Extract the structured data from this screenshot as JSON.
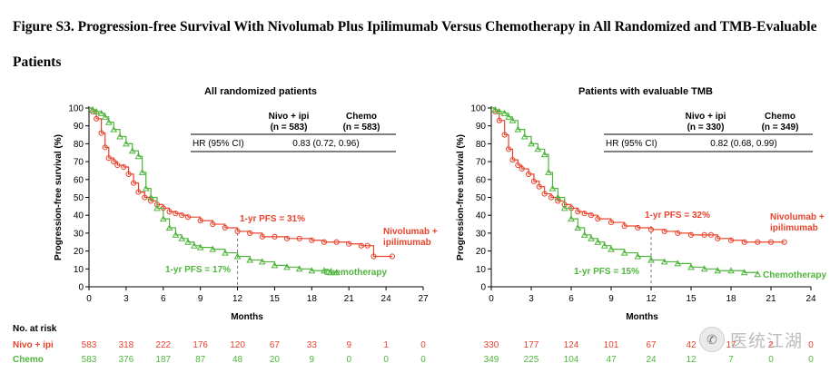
{
  "figure_title": "Figure S3. Progression-free Survival With Nivolumab Plus Ipilimumab Versus Chemotherapy in All Randomized and TMB-Evaluable Patients",
  "colors": {
    "nivo": "#e8432c",
    "chemo": "#4fb53c",
    "text": "#000000"
  },
  "watermark": {
    "icon": "wechat-icon",
    "text": "医统江湖"
  },
  "risk_table": {
    "header": "No. at risk",
    "row_labels": [
      "Nivo + ipi",
      "Chemo"
    ]
  },
  "chart_data": [
    {
      "type": "line",
      "title": "All randomized patients",
      "xlabel": "Months",
      "ylabel": "Progression-free survival (%)",
      "xlim": [
        0,
        27
      ],
      "ylim": [
        0,
        100
      ],
      "xticks": [
        0,
        3,
        6,
        9,
        12,
        15,
        18,
        21,
        24,
        27
      ],
      "yticks": [
        0,
        10,
        20,
        30,
        40,
        50,
        60,
        70,
        80,
        90,
        100
      ],
      "landmark_x": 12,
      "hr_table": {
        "col1": "Nivo + ipi",
        "col1_n": "(n = 583)",
        "col2": "Chemo",
        "col2_n": "(n = 583)",
        "row_label": "HR (95% CI)",
        "value": "0.83 (0.72, 0.96)"
      },
      "series": [
        {
          "name": "Nivolumab + ipilimumab",
          "label_line1": "Nivolumab +",
          "label_line2": "ipilimumab",
          "marker": "circle",
          "annotation": "1-yr PFS = 31%",
          "x": [
            0,
            0.3,
            0.6,
            1.0,
            1.3,
            1.6,
            2.0,
            2.3,
            2.8,
            3.2,
            3.6,
            4.0,
            4.5,
            5.0,
            5.5,
            6.0,
            6.5,
            7.0,
            7.5,
            8.0,
            9.0,
            10.0,
            11.0,
            12.0,
            13.0,
            14.0,
            15.0,
            16.0,
            17.0,
            18.0,
            19.0,
            20.0,
            21.0,
            22.0,
            22.5,
            23.0,
            24.5
          ],
          "y": [
            100,
            98,
            94,
            86,
            78,
            72,
            70,
            68,
            67,
            63,
            58,
            53,
            50,
            48,
            46,
            44,
            42,
            41,
            40,
            39,
            37,
            35,
            33,
            31,
            30,
            28,
            28,
            27,
            27,
            26,
            25,
            25,
            24,
            23,
            23,
            17,
            17
          ]
        },
        {
          "name": "Chemotherapy",
          "marker": "triangle",
          "annotation": "1-yr PFS = 17%",
          "x": [
            0,
            0.3,
            0.6,
            1.0,
            1.3,
            1.6,
            2.0,
            2.5,
            3.0,
            3.5,
            4.0,
            4.3,
            4.6,
            5.0,
            5.5,
            6.0,
            6.5,
            7.0,
            7.5,
            8.0,
            8.5,
            9.0,
            10.0,
            11.0,
            12.0,
            13.0,
            14.0,
            15.0,
            16.0,
            17.0,
            18.0,
            19.0,
            19.5,
            20.0
          ],
          "y": [
            100,
            99,
            98,
            97,
            95,
            92,
            88,
            84,
            80,
            76,
            73,
            64,
            55,
            50,
            44,
            38,
            33,
            29,
            27,
            25,
            23,
            22,
            21,
            19,
            17,
            15,
            14,
            12,
            11,
            10,
            9,
            9,
            8,
            8
          ]
        }
      ],
      "at_risk_times": [
        0,
        3,
        6,
        9,
        12,
        15,
        18,
        21,
        24,
        27
      ],
      "at_risk": {
        "nivo": [
          583,
          318,
          222,
          176,
          120,
          67,
          33,
          9,
          1,
          0
        ],
        "chemo": [
          583,
          376,
          187,
          87,
          48,
          20,
          9,
          0,
          0,
          0
        ]
      }
    },
    {
      "type": "line",
      "title": "Patients with evaluable TMB",
      "xlabel": "Months",
      "ylabel": "Progression-free survival (%)",
      "xlim": [
        0,
        24
      ],
      "ylim": [
        0,
        100
      ],
      "xticks": [
        0,
        3,
        6,
        9,
        12,
        15,
        18,
        21,
        24
      ],
      "yticks": [
        0,
        10,
        20,
        30,
        40,
        50,
        60,
        70,
        80,
        90,
        100
      ],
      "landmark_x": 12,
      "hr_table": {
        "col1": "Nivo + ipi",
        "col1_n": "(n = 330)",
        "col2": "Chemo",
        "col2_n": "(n = 349)",
        "row_label": "HR (95% CI)",
        "value": "0.82 (0.68, 0.99)"
      },
      "series": [
        {
          "name": "Nivolumab + ipilimumab",
          "label_line1": "Nivolumab +",
          "label_line2": "ipilimumab",
          "marker": "circle",
          "annotation": "1-yr PFS = 32%",
          "x": [
            0,
            0.3,
            0.6,
            1.0,
            1.3,
            1.6,
            2.0,
            2.3,
            2.8,
            3.2,
            3.6,
            4.0,
            4.5,
            5.0,
            5.5,
            6.0,
            6.5,
            7.0,
            7.5,
            8.0,
            9.0,
            10.0,
            11.0,
            12.0,
            13.0,
            14.0,
            15.0,
            16.0,
            16.5,
            17.0,
            18.0,
            19.0,
            20.0,
            21.0,
            22.0
          ],
          "y": [
            100,
            98,
            93,
            85,
            77,
            71,
            68,
            66,
            63,
            59,
            56,
            52,
            50,
            48,
            46,
            44,
            42,
            41,
            40,
            38,
            36,
            34,
            33,
            32,
            31,
            30,
            29,
            29,
            29,
            27,
            26,
            25,
            25,
            25,
            25
          ]
        },
        {
          "name": "Chemotherapy",
          "marker": "triangle",
          "annotation": "1-yr PFS = 15%",
          "x": [
            0,
            0.3,
            0.6,
            1.0,
            1.3,
            1.6,
            2.0,
            2.5,
            3.0,
            3.5,
            4.0,
            4.3,
            4.6,
            5.0,
            5.5,
            6.0,
            6.5,
            7.0,
            7.5,
            8.0,
            8.5,
            9.0,
            10.0,
            11.0,
            12.0,
            13.0,
            14.0,
            15.0,
            16.0,
            17.0,
            18.0,
            19.0,
            20.0
          ],
          "y": [
            100,
            99,
            98,
            97,
            95,
            93,
            88,
            84,
            80,
            77,
            74,
            64,
            55,
            50,
            44,
            38,
            33,
            29,
            27,
            25,
            23,
            21,
            19,
            17,
            15,
            14,
            13,
            11,
            10,
            9,
            9,
            8,
            7
          ]
        }
      ],
      "at_risk_times": [
        0,
        3,
        6,
        9,
        12,
        15,
        18,
        21,
        24
      ],
      "at_risk": {
        "nivo": [
          330,
          177,
          124,
          101,
          67,
          42,
          17,
          2,
          0
        ],
        "chemo": [
          349,
          225,
          104,
          47,
          24,
          12,
          7,
          0,
          0
        ]
      }
    }
  ]
}
